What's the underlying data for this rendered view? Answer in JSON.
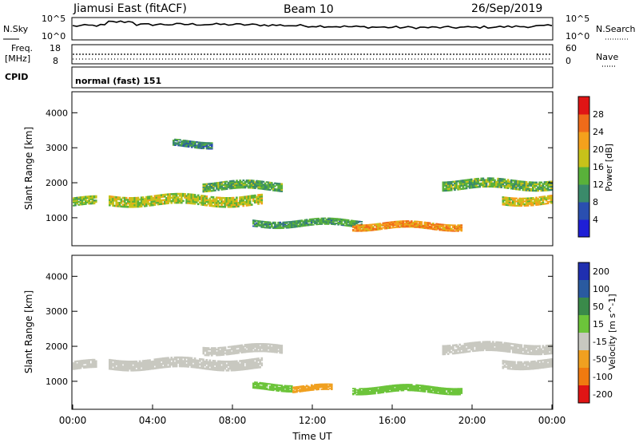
{
  "header": {
    "radar": "Jiamusi East (fitACF)",
    "beam": "Beam 10",
    "date": "26/Sep/2019"
  },
  "status_panels": {
    "nsky_label": "N.Sky",
    "nsearch_label": "N.Search",
    "noise_ticks_left": [
      "10^5",
      "10^0"
    ],
    "noise_ticks_right": [
      "10^5",
      "10^0"
    ],
    "freq_label": "Freq.",
    "freq_unit": "[MHz]",
    "freq_ticks": [
      "18",
      "8"
    ],
    "nave_label": "Nave",
    "nave_ticks": [
      "60",
      "0"
    ],
    "cpid_label": "CPID",
    "cpid_value": "normal (fast) 151"
  },
  "colors": {
    "power_scale": [
      "#1f1fd6",
      "#2a4fb0",
      "#3a8a6a",
      "#59b13a",
      "#c7c21a",
      "#f4a11c",
      "#ef6b1a",
      "#e01515"
    ],
    "velocity_scale": [
      "#1f2fb0",
      "#2a5aa0",
      "#3a8a4a",
      "#6cc43a",
      "#c8c8c0",
      "#f0a020",
      "#f07a10",
      "#e01515"
    ],
    "ground_scatter": "#c8c8c0"
  },
  "chart_data": [
    {
      "type": "heatmap",
      "panel": "power",
      "ylabel": "Slant Range [km]",
      "yticks": [
        "1000",
        "2000",
        "3000",
        "4000"
      ],
      "ylim": [
        200,
        4600
      ],
      "xlim_hours": [
        0,
        24
      ],
      "colorbar": {
        "label": "Power [dB]",
        "ticks": [
          "4",
          "8",
          "12",
          "16",
          "20",
          "24",
          "28"
        ],
        "range": [
          0,
          30
        ]
      },
      "echo_bands": [
        {
          "start_h": 0.0,
          "end_h": 1.2,
          "center_km": 1500,
          "width_km": 250,
          "value": 14
        },
        {
          "start_h": 1.8,
          "end_h": 9.5,
          "center_km": 1550,
          "width_km": 300,
          "value": 16
        },
        {
          "start_h": 5.0,
          "end_h": 7.0,
          "center_km": 3150,
          "width_km": 200,
          "value": 9
        },
        {
          "start_h": 6.5,
          "end_h": 10.5,
          "center_km": 1950,
          "width_km": 250,
          "value": 12
        },
        {
          "start_h": 9.0,
          "end_h": 14.5,
          "center_km": 880,
          "width_km": 200,
          "value": 11
        },
        {
          "start_h": 14.0,
          "end_h": 19.5,
          "center_km": 800,
          "width_km": 200,
          "value": 22
        },
        {
          "start_h": 18.5,
          "end_h": 24.0,
          "center_km": 2000,
          "width_km": 280,
          "value": 13
        },
        {
          "start_h": 21.5,
          "end_h": 24.0,
          "center_km": 1550,
          "width_km": 250,
          "value": 18
        }
      ]
    },
    {
      "type": "heatmap",
      "panel": "velocity",
      "ylabel": "Slant Range [km]",
      "yticks": [
        "1000",
        "2000",
        "3000",
        "4000"
      ],
      "ylim": [
        200,
        4600
      ],
      "xlim_hours": [
        0,
        24
      ],
      "xticks": [
        "00:00",
        "04:00",
        "08:00",
        "12:00",
        "16:00",
        "20:00",
        "00:00"
      ],
      "xlabel": "Time UT",
      "colorbar": {
        "label": "Velocity [m s^-1]",
        "ticks": [
          "200",
          "100",
          "50",
          "15",
          "-15",
          "-50",
          "-100",
          "-200"
        ]
      },
      "echo_bands": [
        {
          "start_h": 0.0,
          "end_h": 1.2,
          "center_km": 1500,
          "width_km": 250,
          "value": 0
        },
        {
          "start_h": 1.8,
          "end_h": 9.5,
          "center_km": 1550,
          "width_km": 300,
          "value": 0
        },
        {
          "start_h": 6.5,
          "end_h": 10.5,
          "center_km": 1950,
          "width_km": 250,
          "value": 0
        },
        {
          "start_h": 9.0,
          "end_h": 11.0,
          "center_km": 880,
          "width_km": 200,
          "value": 30
        },
        {
          "start_h": 11.0,
          "end_h": 13.0,
          "center_km": 820,
          "width_km": 180,
          "value": -40
        },
        {
          "start_h": 14.0,
          "end_h": 19.5,
          "center_km": 800,
          "width_km": 200,
          "value": 30
        },
        {
          "start_h": 18.5,
          "end_h": 24.0,
          "center_km": 2000,
          "width_km": 280,
          "value": 0
        },
        {
          "start_h": 21.5,
          "end_h": 24.0,
          "center_km": 1550,
          "width_km": 250,
          "value": 0
        }
      ]
    }
  ]
}
